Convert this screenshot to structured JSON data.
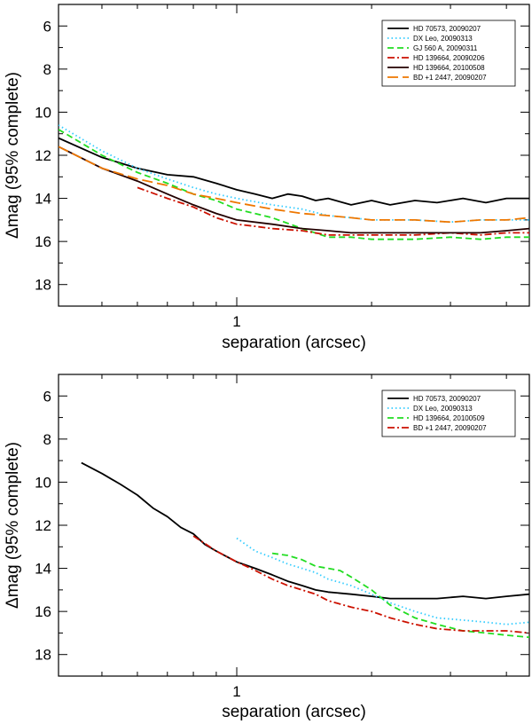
{
  "chart_data": [
    {
      "type": "line",
      "title": "",
      "xlabel": "separation (arcsec)",
      "ylabel": "Δmag (95% complete)",
      "xscale": "log",
      "xlim": [
        0.4,
        4.5
      ],
      "ylim": [
        19,
        5
      ],
      "yticks": [
        6,
        8,
        10,
        12,
        14,
        16,
        18
      ],
      "xticks_labeled": [
        1
      ],
      "legend_position": "top-right",
      "series": [
        {
          "name": "HD 70573, 20090207",
          "color": "#000000",
          "dash": "solid",
          "x": [
            0.4,
            0.5,
            0.6,
            0.7,
            0.8,
            0.9,
            1.0,
            1.1,
            1.2,
            1.3,
            1.4,
            1.5,
            1.6,
            1.8,
            2.0,
            2.2,
            2.5,
            2.8,
            3.2,
            3.6,
            4.0,
            4.5
          ],
          "y": [
            11.2,
            12.1,
            12.6,
            12.9,
            13.0,
            13.3,
            13.6,
            13.8,
            14.0,
            13.8,
            13.9,
            14.1,
            14.0,
            14.3,
            14.1,
            14.3,
            14.1,
            14.2,
            14.0,
            14.2,
            14.0,
            14.0
          ]
        },
        {
          "name": "DX Leo, 20090313",
          "color": "#33ccff",
          "dash": "dot",
          "x": [
            0.4,
            0.5,
            0.6,
            0.7,
            0.8,
            0.9,
            1.0,
            1.2,
            1.4,
            1.6,
            1.8,
            2.0,
            2.5,
            3.0,
            3.5,
            4.0,
            4.5
          ],
          "y": [
            10.6,
            11.8,
            12.6,
            13.1,
            13.5,
            13.8,
            14.0,
            14.3,
            14.5,
            14.8,
            14.9,
            15.0,
            15.0,
            15.1,
            15.0,
            15.0,
            15.0
          ]
        },
        {
          "name": "GJ 560 A, 20090311",
          "color": "#22dd22",
          "dash": "dash",
          "x": [
            0.4,
            0.5,
            0.6,
            0.7,
            0.8,
            0.9,
            1.0,
            1.2,
            1.4,
            1.6,
            1.8,
            2.0,
            2.5,
            3.0,
            3.5,
            4.0,
            4.5
          ],
          "y": [
            10.8,
            12.0,
            12.8,
            13.3,
            13.8,
            14.1,
            14.5,
            14.9,
            15.4,
            15.8,
            15.8,
            15.9,
            15.9,
            15.8,
            15.9,
            15.8,
            15.8
          ]
        },
        {
          "name": "HD 139664, 20090206",
          "color": "#cc1100",
          "dash": "dashdot",
          "x": [
            0.6,
            0.7,
            0.8,
            0.9,
            1.0,
            1.1,
            1.2,
            1.4,
            1.6,
            1.8,
            2.0,
            2.5,
            3.0,
            3.5,
            4.0,
            4.5
          ],
          "y": [
            13.5,
            14.0,
            14.4,
            14.9,
            15.2,
            15.3,
            15.4,
            15.5,
            15.7,
            15.7,
            15.7,
            15.7,
            15.6,
            15.7,
            15.6,
            15.6
          ]
        },
        {
          "name": "HD 139664, 20100508",
          "color": "#220000",
          "dash": "solid",
          "x": [
            0.4,
            0.5,
            0.6,
            0.7,
            0.8,
            0.9,
            1.0,
            1.2,
            1.4,
            1.6,
            1.8,
            2.0,
            2.5,
            3.0,
            3.5,
            4.0,
            4.5
          ],
          "y": [
            11.6,
            12.6,
            13.2,
            13.8,
            14.3,
            14.7,
            15.0,
            15.2,
            15.4,
            15.5,
            15.6,
            15.6,
            15.6,
            15.6,
            15.6,
            15.5,
            15.4
          ]
        },
        {
          "name": "BD +1 2447, 20090207",
          "color": "#ee7700",
          "dash": "longdash",
          "x": [
            0.4,
            0.5,
            0.6,
            0.7,
            0.8,
            0.9,
            1.0,
            1.2,
            1.4,
            1.6,
            1.8,
            2.0,
            2.5,
            3.0,
            3.5,
            4.0,
            4.5
          ],
          "y": [
            11.6,
            12.6,
            13.1,
            13.4,
            13.8,
            14.0,
            14.2,
            14.5,
            14.7,
            14.8,
            14.9,
            15.0,
            15.0,
            15.1,
            15.0,
            15.0,
            14.9
          ]
        }
      ]
    },
    {
      "type": "line",
      "title": "",
      "xlabel": "separation (arcsec)",
      "ylabel": "Δmag (95% complete)",
      "xscale": "log",
      "xlim": [
        0.4,
        4.5
      ],
      "ylim": [
        19,
        5
      ],
      "yticks": [
        6,
        8,
        10,
        12,
        14,
        16,
        18
      ],
      "xticks_labeled": [
        1
      ],
      "legend_position": "top-right",
      "series": [
        {
          "name": "HD 70573, 20090207",
          "color": "#000000",
          "dash": "solid",
          "x": [
            0.45,
            0.5,
            0.55,
            0.6,
            0.65,
            0.7,
            0.75,
            0.8,
            0.85,
            0.9,
            1.0,
            1.1,
            1.2,
            1.3,
            1.4,
            1.5,
            1.6,
            1.8,
            2.0,
            2.2,
            2.5,
            2.8,
            3.2,
            3.6,
            4.0,
            4.5
          ],
          "y": [
            9.1,
            9.6,
            10.1,
            10.6,
            11.2,
            11.6,
            12.1,
            12.4,
            12.9,
            13.2,
            13.7,
            14.0,
            14.3,
            14.6,
            14.8,
            15.0,
            15.1,
            15.2,
            15.3,
            15.4,
            15.4,
            15.4,
            15.3,
            15.4,
            15.3,
            15.2
          ]
        },
        {
          "name": "DX Leo, 20090313",
          "color": "#33ccff",
          "dash": "dot",
          "x": [
            1.0,
            1.1,
            1.2,
            1.3,
            1.4,
            1.5,
            1.6,
            1.8,
            2.0,
            2.2,
            2.5,
            2.8,
            3.2,
            3.6,
            4.0,
            4.5
          ],
          "y": [
            12.6,
            13.2,
            13.5,
            13.8,
            14.0,
            14.2,
            14.5,
            14.8,
            15.2,
            15.6,
            16.0,
            16.3,
            16.4,
            16.5,
            16.6,
            16.5
          ]
        },
        {
          "name": "HD 139664, 20100509",
          "color": "#22dd22",
          "dash": "dash",
          "x": [
            1.2,
            1.3,
            1.4,
            1.5,
            1.6,
            1.7,
            1.8,
            2.0,
            2.2,
            2.5,
            2.8,
            3.2,
            3.6,
            4.0,
            4.5
          ],
          "y": [
            13.3,
            13.4,
            13.6,
            13.9,
            14.0,
            14.1,
            14.4,
            15.0,
            15.7,
            16.3,
            16.6,
            16.9,
            17.0,
            17.1,
            17.2
          ]
        },
        {
          "name": "BD +1 2447, 20090207",
          "color": "#cc1100",
          "dash": "dashdot",
          "x": [
            0.8,
            0.9,
            1.0,
            1.1,
            1.2,
            1.3,
            1.4,
            1.5,
            1.6,
            1.8,
            2.0,
            2.2,
            2.5,
            2.8,
            3.2,
            3.6,
            4.0,
            4.5
          ],
          "y": [
            12.5,
            13.2,
            13.7,
            14.1,
            14.5,
            14.8,
            15.0,
            15.2,
            15.5,
            15.8,
            16.0,
            16.3,
            16.6,
            16.8,
            16.9,
            16.9,
            16.9,
            17.0
          ]
        }
      ]
    }
  ]
}
